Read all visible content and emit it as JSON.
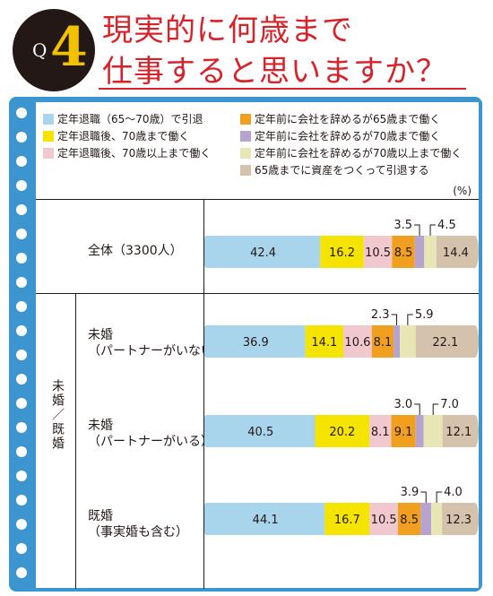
{
  "header": {
    "badge_q": "Q",
    "badge_num": "4",
    "title_line1": "現実的に何歳まで",
    "title_line2": "仕事すると思いますか？"
  },
  "legend": [
    {
      "label": "定年退職（65〜70歳）で引退",
      "color": "#a8d5ec"
    },
    {
      "label": "定年退職後、70歳まで働く",
      "color": "#f5e400"
    },
    {
      "label": "定年退職後、70歳以上まで働く",
      "color": "#f2c8cf"
    },
    {
      "label": "定年前に会社を辞めるが65歳まで働く",
      "color": "#f0a01e"
    },
    {
      "label": "定年前に会社を辞めるが70歳まで働く",
      "color": "#b7a3cf"
    },
    {
      "label": "定年前に会社を辞めるが70歳以上まで働く",
      "color": "#e9e6b5"
    },
    {
      "label": "65歳までに資産をつくって引退する",
      "color": "#d5c2ac"
    }
  ],
  "unit": "(%)",
  "group_label": "未婚／既婚",
  "chart_data": {
    "type": "bar",
    "orientation": "horizontal-stacked",
    "unit": "%",
    "categories": [
      "全体（3300人）",
      "未婚（パートナーがいない）",
      "未婚（パートナーがいる）",
      "既婚（事実婚も含む）"
    ],
    "category_lines": [
      [
        "全体（3300人）"
      ],
      [
        "未婚",
        "（パートナーがいない）"
      ],
      [
        "未婚",
        "（パートナーがいる）"
      ],
      [
        "既婚",
        "（事実婚も含む）"
      ]
    ],
    "series": [
      {
        "name": "定年退職（65〜70歳）で引退",
        "values": [
          42.4,
          36.9,
          40.5,
          44.1
        ]
      },
      {
        "name": "定年退職後、70歳まで働く",
        "values": [
          16.2,
          14.1,
          20.2,
          16.7
        ]
      },
      {
        "name": "定年退職後、70歳以上まで働く",
        "values": [
          10.5,
          10.6,
          8.1,
          10.5
        ]
      },
      {
        "name": "定年前に会社を辞めるが65歳まで働く",
        "values": [
          8.5,
          8.1,
          9.1,
          8.5
        ]
      },
      {
        "name": "定年前に会社を辞めるが70歳まで働く",
        "values": [
          3.5,
          2.3,
          3.0,
          3.9
        ]
      },
      {
        "name": "定年前に会社を辞めるが70歳以上まで働く",
        "values": [
          4.5,
          5.9,
          7.0,
          4.0
        ]
      },
      {
        "name": "65歳までに資産をつくって引退する",
        "values": [
          14.4,
          22.1,
          12.1,
          12.3
        ]
      }
    ]
  }
}
